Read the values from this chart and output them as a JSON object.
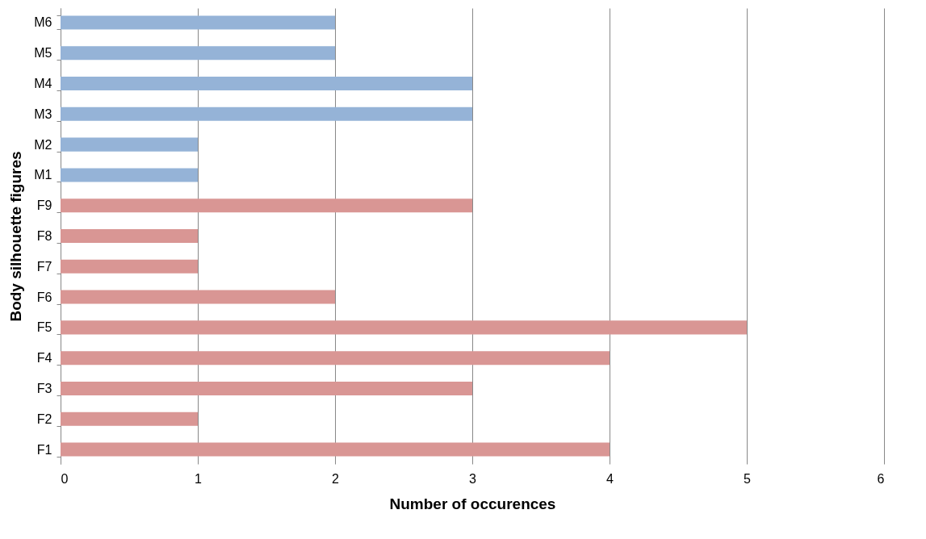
{
  "chart_data": {
    "type": "bar",
    "orientation": "horizontal",
    "categories": [
      "M6",
      "M5",
      "M4",
      "M3",
      "M2",
      "M1",
      "F9",
      "F8",
      "F7",
      "F6",
      "F5",
      "F4",
      "F3",
      "F2",
      "F1"
    ],
    "values": [
      2,
      2,
      3,
      3,
      1,
      1,
      3,
      1,
      1,
      2,
      5,
      4,
      3,
      1,
      4
    ],
    "colors": [
      "#95b3d7",
      "#95b3d7",
      "#95b3d7",
      "#95b3d7",
      "#95b3d7",
      "#95b3d7",
      "#d99694",
      "#d99694",
      "#d99694",
      "#d99694",
      "#d99694",
      "#d99694",
      "#d99694",
      "#d99694",
      "#d99694"
    ],
    "xlim": [
      0,
      6
    ],
    "xticks": [
      0,
      1,
      2,
      3,
      4,
      5,
      6
    ],
    "grid": "x",
    "xlabel": "Number of occurences",
    "ylabel": "Body silhouette figures"
  }
}
